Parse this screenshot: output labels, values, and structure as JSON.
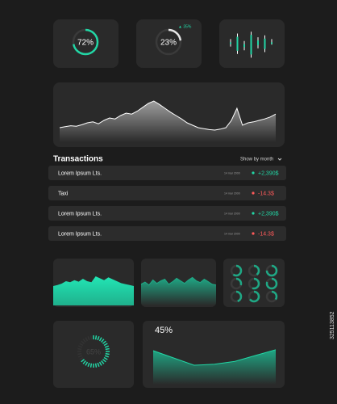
{
  "gauges": [
    {
      "value": 72,
      "label": "72%"
    },
    {
      "value": 23,
      "label": "23%",
      "change": "▲ 35%"
    }
  ],
  "bars": [
    [
      40,
      60
    ],
    [
      20,
      75
    ],
    [
      30,
      55
    ],
    [
      10,
      80
    ],
    [
      35,
      65
    ],
    [
      25,
      70
    ],
    [
      45,
      60
    ]
  ],
  "main_line": [
    30,
    32,
    34,
    33,
    36,
    40,
    42,
    38,
    45,
    50,
    48,
    55,
    60,
    58,
    64,
    72,
    80,
    85,
    78,
    70,
    62,
    55,
    48,
    40,
    35,
    30,
    28,
    26,
    25,
    27,
    30,
    45,
    70,
    35,
    40,
    42,
    45,
    48,
    52,
    58
  ],
  "transactions": {
    "title": "Transactions",
    "filter": "Show by month",
    "rows": [
      {
        "name": "Lorem Ipsum Lts.",
        "date": "14 mar 2000",
        "amount": {
          "value": 2390,
          "label": "+2,390$"
        }
      },
      {
        "name": "Taxi",
        "date": "14 mar 2000",
        "amount": {
          "value": -14.3,
          "label": "-14.3$"
        }
      },
      {
        "name": "Lorem Ipsum Lts.",
        "date": "14 mar 2000",
        "amount": {
          "value": 2390,
          "label": "+2,390$"
        }
      },
      {
        "name": "Lorem Ipsum Lts.",
        "date": "14 mar 2000",
        "amount": {
          "value": -14.3,
          "label": "-14.3$"
        }
      }
    ]
  },
  "area_1": [
    40,
    42,
    45,
    50,
    48,
    52,
    49,
    55,
    50,
    48,
    60,
    56,
    52,
    58,
    54,
    50,
    46,
    44,
    42,
    40
  ],
  "area_2": [
    50,
    55,
    48,
    60,
    52,
    58,
    62,
    50,
    56,
    64,
    58,
    52,
    60,
    66,
    58,
    54,
    62,
    56,
    50,
    48
  ],
  "donuts": [
    60,
    40,
    75,
    30,
    55,
    80,
    45,
    65,
    35
  ],
  "progress": {
    "value": 65,
    "label": "65%"
  },
  "summary": {
    "label": "45%",
    "line": [
      70,
      55,
      40,
      42,
      48,
      60,
      72
    ]
  },
  "stock_id": "325113852"
}
